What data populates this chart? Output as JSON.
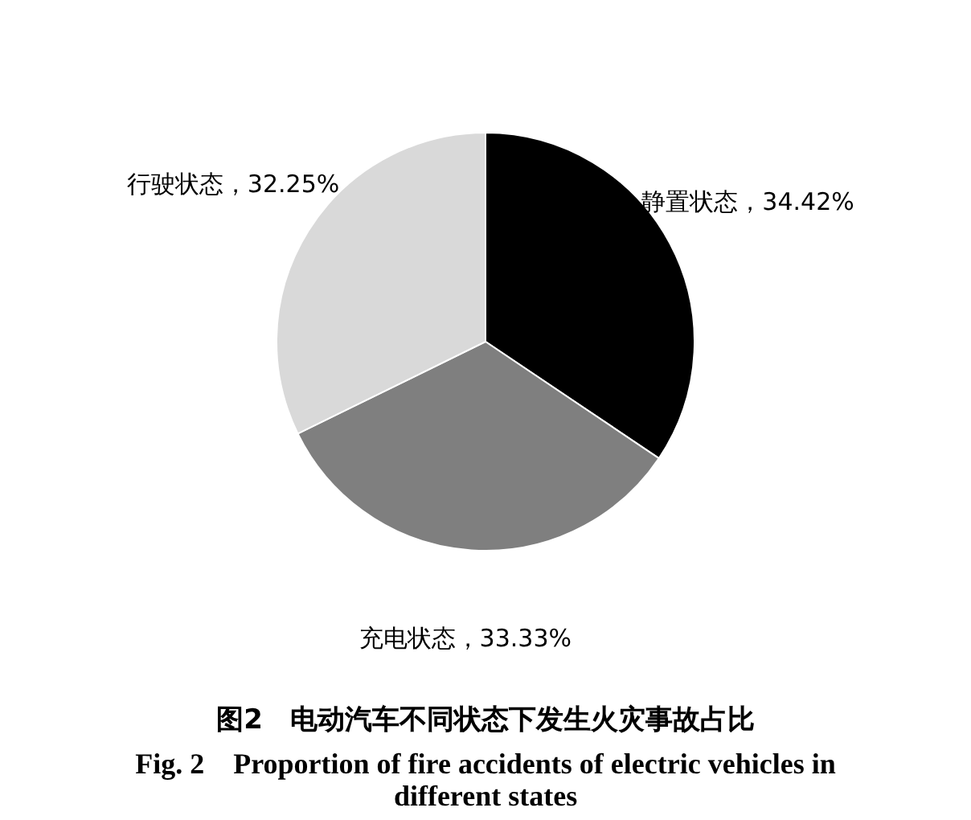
{
  "chart_data": {
    "type": "pie",
    "title": "图2　电动汽车不同状态下发生火灾事故占比",
    "subtitle": "Fig. 2　Proportion of fire accidents of electric vehicles in different states",
    "categories": [
      "静置状态",
      "充电状态",
      "行驶状态"
    ],
    "values": [
      34.42,
      33.33,
      32.25
    ],
    "value_labels": [
      "34.42%",
      "33.33%",
      "32.25%"
    ],
    "colors": [
      "#000000",
      "#7f7f7f",
      "#d9d9d9"
    ],
    "legend": false
  }
}
